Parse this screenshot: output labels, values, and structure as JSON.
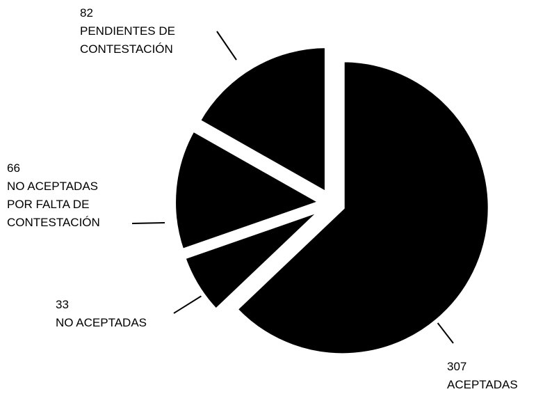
{
  "chart_data": {
    "type": "pie",
    "categories": [
      "ACEPTADAS",
      "NO ACEPTADAS",
      "NO ACEPTADAS\nPOR FALTA DE\nCONTESTACIÓN",
      "PENDIENTES DE\nCONTESTACIÓN"
    ],
    "values": [
      307,
      33,
      66,
      82
    ],
    "color": "#000000"
  }
}
